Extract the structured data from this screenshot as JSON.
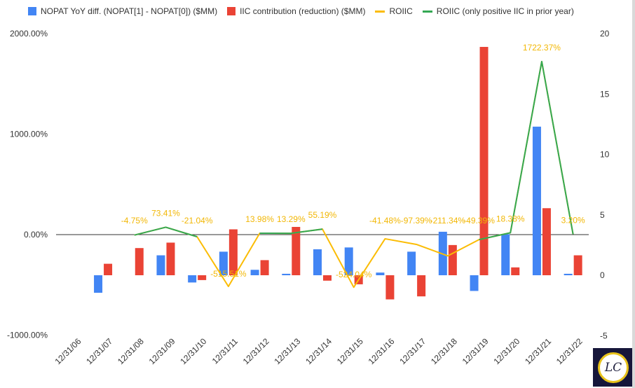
{
  "colors": {
    "nopat": "#4285f4",
    "iic": "#ea4335",
    "roiic": "#fbbc04",
    "roiic_pos": "#34a853",
    "data_label": "#f2b705"
  },
  "legend": [
    {
      "label": "NOPAT YoY diff. (NOPAT[1] - NOPAT[0]) ($MM)",
      "kind": "box",
      "color": "#4285f4"
    },
    {
      "label": "IIC contribution (reduction) ($MM)",
      "kind": "box",
      "color": "#ea4335"
    },
    {
      "label": "ROIIC",
      "kind": "line",
      "color": "#fbbc04"
    },
    {
      "label": "ROIIC (only positive IIC in prior year)",
      "kind": "line",
      "color": "#34a853"
    }
  ],
  "logo": {
    "text": "LC"
  },
  "chart_data": {
    "type": "bar",
    "categories": [
      "12/31/06",
      "12/31/07",
      "12/31/08",
      "12/31/09",
      "12/31/10",
      "12/31/11",
      "12/31/12",
      "12/31/13",
      "12/31/14",
      "12/31/15",
      "12/31/16",
      "12/31/17",
      "12/31/18",
      "12/31/19",
      "12/31/20",
      "12/31/21",
      "12/31/22"
    ],
    "y_left": {
      "min": -1000,
      "max": 2000,
      "ticks": [
        -1000,
        0,
        1000,
        2000
      ],
      "tick_labels": [
        "-1000.00%",
        "0.00%",
        "1000.00%",
        "2000.00%"
      ]
    },
    "y_right": {
      "min": -5,
      "max": 20,
      "ticks": [
        -5,
        0,
        5,
        10,
        15,
        20
      ],
      "tick_labels": [
        "-5",
        "0",
        "5",
        "10",
        "15",
        "20"
      ]
    },
    "series": [
      {
        "name": "NOPAT YoY diff. (NOPAT[1] - NOPAT[0]) ($MM)",
        "type": "bar",
        "axis": "right",
        "values": [
          null,
          -1.45,
          null,
          1.65,
          -0.6,
          1.95,
          0.45,
          0.12,
          2.15,
          2.3,
          0.22,
          1.95,
          3.6,
          -1.3,
          3.4,
          12.3,
          0.12
        ]
      },
      {
        "name": "IIC contribution (reduction) ($MM)",
        "type": "bar",
        "axis": "right",
        "values": [
          null,
          0.95,
          2.25,
          2.7,
          -0.4,
          3.8,
          1.25,
          4.0,
          -0.45,
          -0.75,
          -2.0,
          -1.75,
          2.5,
          18.9,
          0.65,
          5.55,
          1.65
        ]
      },
      {
        "name": "ROIIC",
        "type": "line",
        "axis": "left",
        "values": [
          null,
          null,
          -4.75,
          73.41,
          -21.04,
          -515.51,
          13.98,
          13.29,
          55.19,
          -524.04,
          -41.48,
          -97.39,
          -211.34,
          -49.39,
          18.38,
          1722.37,
          3.2
        ],
        "labels": [
          null,
          null,
          "-4.75%",
          "73.41%",
          "-21.04%",
          "-515.51%",
          "13.98%",
          "13.29%",
          "55.19%",
          "-524.04%",
          "-41.48%",
          "-97.39%",
          "-211.34%",
          "-49.39%",
          "18.38%",
          "1722.37%",
          "3.20%"
        ]
      },
      {
        "name": "ROIIC (only positive IIC in prior year)",
        "type": "line",
        "axis": "left",
        "values": [
          null,
          null,
          -4.75,
          73.41,
          -21.04,
          null,
          13.98,
          13.29,
          55.19,
          null,
          null,
          null,
          null,
          -49.39,
          18.38,
          1722.37,
          3.2
        ]
      }
    ]
  }
}
